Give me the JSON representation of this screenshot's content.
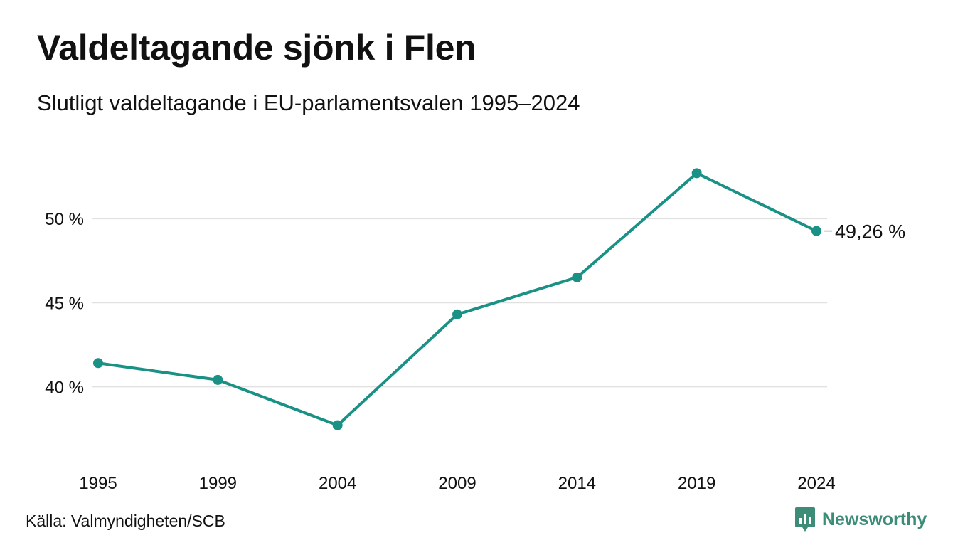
{
  "title": "Valdeltagande sjönk i Flen",
  "subtitle": "Slutligt valdeltagande i EU-parlamentsvalen 1995–2024",
  "source": "Källa: Valmyndigheten/SCB",
  "brand": {
    "name": "Newsworthy",
    "icon": "newsworthy-logo-icon",
    "color": "#3d8c77"
  },
  "chart_data": {
    "type": "line",
    "x": [
      "1995",
      "1999",
      "2004",
      "2009",
      "2014",
      "2019",
      "2024"
    ],
    "series": [
      {
        "values": [
          41.4,
          40.4,
          37.7,
          44.3,
          46.5,
          52.7,
          49.26
        ],
        "color": "#1a9185"
      }
    ],
    "y_ticks": [
      {
        "value": 40,
        "label": "40 %"
      },
      {
        "value": 45,
        "label": "45 %"
      },
      {
        "value": 50,
        "label": "50 %"
      }
    ],
    "ylim": [
      35.4,
      55.3
    ],
    "grid": true,
    "end_label": "49,26 %",
    "colors": {
      "line": "#1a9185",
      "grid": "#e1e1e1",
      "end_label_leader": "#c7c7c7"
    }
  }
}
